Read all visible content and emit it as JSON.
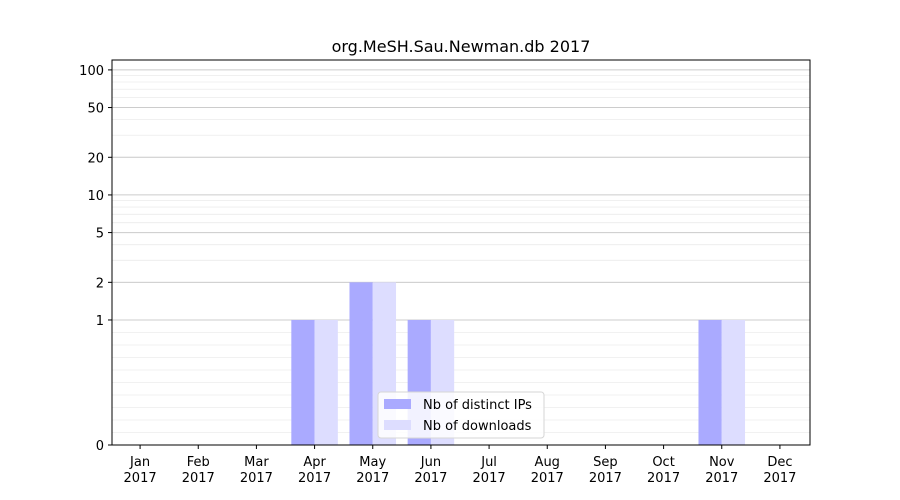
{
  "chart_data": {
    "type": "bar",
    "title": "org.MeSH.Sau.Newman.db 2017",
    "xlabel": "",
    "ylabel": "",
    "y_scale": "symlog",
    "ylim": [
      0,
      120
    ],
    "y_ticks": [
      0,
      1,
      2,
      5,
      10,
      20,
      50,
      100
    ],
    "y_tick_labels": [
      "0",
      "1",
      "2",
      "5",
      "10",
      "20",
      "50",
      "100"
    ],
    "categories": [
      "Jan\n2017",
      "Feb\n2017",
      "Mar\n2017",
      "Apr\n2017",
      "May\n2017",
      "Jun\n2017",
      "Jul\n2017",
      "Aug\n2017",
      "Sep\n2017",
      "Oct\n2017",
      "Nov\n2017",
      "Dec\n2017"
    ],
    "category_lines": [
      [
        "Jan",
        "2017"
      ],
      [
        "Feb",
        "2017"
      ],
      [
        "Mar",
        "2017"
      ],
      [
        "Apr",
        "2017"
      ],
      [
        "May",
        "2017"
      ],
      [
        "Jun",
        "2017"
      ],
      [
        "Jul",
        "2017"
      ],
      [
        "Aug",
        "2017"
      ],
      [
        "Sep",
        "2017"
      ],
      [
        "Oct",
        "2017"
      ],
      [
        "Nov",
        "2017"
      ],
      [
        "Dec",
        "2017"
      ]
    ],
    "series": [
      {
        "name": "Nb of distinct IPs",
        "color": "#aaaaff",
        "values": [
          0,
          0,
          0,
          1,
          2,
          1,
          0,
          0,
          0,
          0,
          1,
          0
        ]
      },
      {
        "name": "Nb of downloads",
        "color": "#ddddff",
        "values": [
          0,
          0,
          0,
          1,
          2,
          1,
          0,
          0,
          0,
          0,
          1,
          0
        ]
      }
    ],
    "grid": true,
    "legend_position": "lower-center"
  }
}
